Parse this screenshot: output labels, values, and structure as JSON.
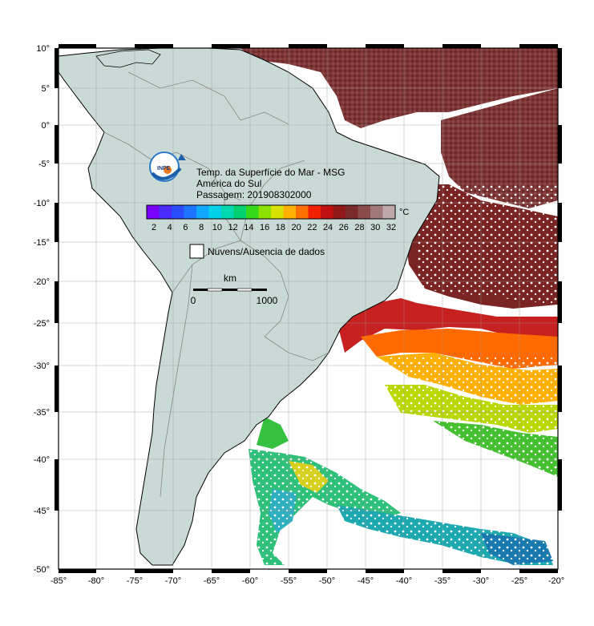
{
  "map": {
    "title_line1": "Temp. da Superfície do Mar - MSG",
    "title_line2": "América do Sul",
    "title_line3": "Passagem: 201908302000",
    "logo_text": "INPE",
    "colorbar_unit": "°C",
    "colorbar_ticks": [
      "2",
      "4",
      "6",
      "8",
      "10",
      "12",
      "14",
      "16",
      "18",
      "20",
      "22",
      "24",
      "26",
      "28",
      "30",
      "32"
    ],
    "colorbar_colors": [
      "#7a00ff",
      "#4b2bff",
      "#2a4bff",
      "#1d75ff",
      "#10a8ff",
      "#00d0e8",
      "#00d8b0",
      "#00d070",
      "#35d81a",
      "#8be000",
      "#d8e000",
      "#ffb000",
      "#ff7000",
      "#f02000",
      "#c01010",
      "#901818",
      "#7a2a2a",
      "#8a4a4a",
      "#a07878",
      "#c0a8a8"
    ],
    "legend_clouds": "Nuvens/Ausencia de dados",
    "scale_unit": "km",
    "scale_start": "0",
    "scale_end": "1000",
    "lat_labels": [
      "10°",
      "5°",
      "0°",
      "-5°",
      "-10°",
      "-15°",
      "-20°",
      "-25°",
      "-30°",
      "-35°",
      "-40°",
      "-45°",
      "-50°"
    ],
    "lon_labels": [
      "-85°",
      "-80°",
      "-75°",
      "-70°",
      "-65°",
      "-60°",
      "-55°",
      "-50°",
      "-45°",
      "-40°",
      "-35°",
      "-30°",
      "-25°",
      "-20°"
    ],
    "colors": {
      "land": "#c9d9d6",
      "ocean_bg": "#ffffff",
      "frame": "#000000"
    }
  }
}
